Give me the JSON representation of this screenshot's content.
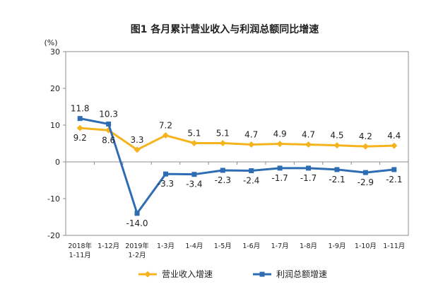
{
  "chart_data": {
    "type": "line",
    "title": "图1 各月累计营业收入与利润总额同比增速",
    "ylabel": "(%)",
    "ylim": [
      -20,
      30
    ],
    "yticks": [
      -20,
      -10,
      0,
      10,
      20,
      30
    ],
    "categories": [
      [
        "2018年",
        "1-11月"
      ],
      [
        "1-12月"
      ],
      [
        "2019年",
        "1-2月"
      ],
      [
        "1-3月"
      ],
      [
        "1-4月"
      ],
      [
        "1-5月"
      ],
      [
        "1-6月"
      ],
      [
        "1-7月"
      ],
      [
        "1-8月"
      ],
      [
        "1-9月"
      ],
      [
        "1-10月"
      ],
      [
        "1-11月"
      ]
    ],
    "series": [
      {
        "name": "营业收入增速",
        "color": "#F5B41E",
        "marker": "diamond",
        "values": [
          9.2,
          8.6,
          3.3,
          7.2,
          5.1,
          5.1,
          4.7,
          4.9,
          4.7,
          4.5,
          4.2,
          4.4
        ],
        "labels": [
          "9.2",
          "8.6",
          "3.3",
          "7.2",
          "5.1",
          "5.1",
          "4.7",
          "4.9",
          "4.7",
          "4.5",
          "4.2",
          "4.4"
        ]
      },
      {
        "name": "利润总额增速",
        "color": "#2E6DB4",
        "marker": "square",
        "values": [
          11.8,
          10.3,
          -14.0,
          -3.3,
          -3.4,
          -2.3,
          -2.4,
          -1.7,
          -1.7,
          -2.1,
          -2.9,
          -2.1
        ],
        "labels": [
          "11.8",
          "10.3",
          "-14.0",
          "-3.3",
          "-3.4",
          "-2.3",
          "-2.4",
          "-1.7",
          "-1.7",
          "-2.1",
          "-2.9",
          "-2.1"
        ]
      }
    ],
    "grid": false,
    "legend_position": "bottom"
  }
}
